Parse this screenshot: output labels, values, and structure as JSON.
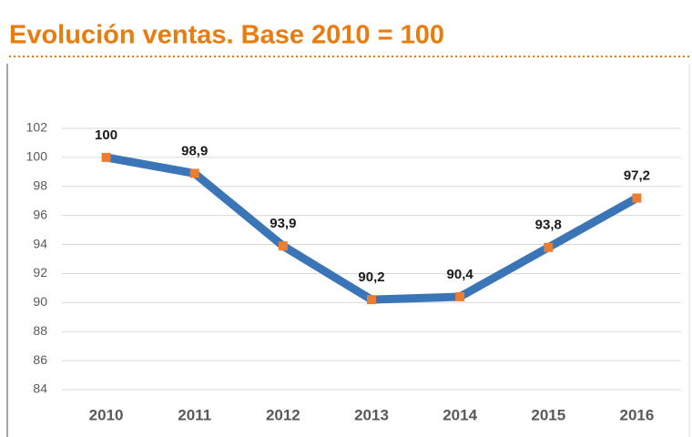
{
  "chart_data": {
    "type": "line",
    "title": "Evolución ventas. Base 2010 = 100",
    "categories": [
      "2010",
      "2011",
      "2012",
      "2013",
      "2014",
      "2015",
      "2016"
    ],
    "series": [
      {
        "name": null,
        "color": "#3a75b8",
        "marker_color": "#ed7d31",
        "values": [
          100,
          98.9,
          93.9,
          90.2,
          90.4,
          93.8,
          97.2
        ],
        "value_labels": [
          "100",
          "98,9",
          "93,9",
          "90,2",
          "90,4",
          "93,8",
          "97,2"
        ]
      }
    ],
    "ylim": [
      84,
      102
    ],
    "yticks": [
      84,
      86,
      88,
      90,
      92,
      94,
      96,
      98,
      100,
      102
    ],
    "grid": true
  }
}
